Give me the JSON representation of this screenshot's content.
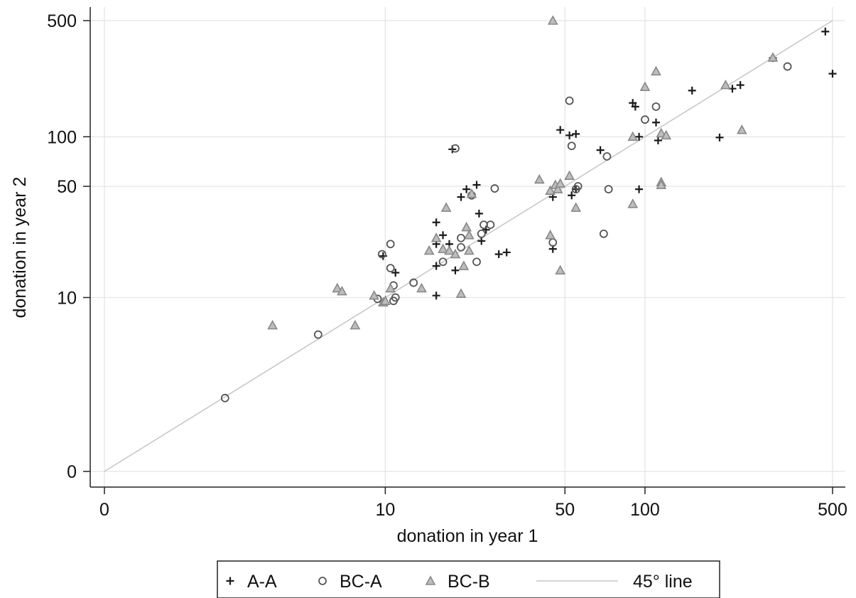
{
  "chart_data": {
    "type": "scatter",
    "title": "",
    "xlabel": "donation in year 1",
    "ylabel": "donation in year 2",
    "scale": "log(1+x)",
    "xlim": [
      0,
      500
    ],
    "ylim": [
      0,
      500
    ],
    "x_ticks": [
      0,
      10,
      50,
      100,
      500
    ],
    "y_ticks": [
      0,
      10,
      50,
      100,
      500
    ],
    "x_tick_labels": [
      "0",
      "10",
      "50",
      "100",
      "500"
    ],
    "y_tick_labels": [
      "0",
      "10",
      "50",
      "100",
      "500"
    ],
    "grid": true,
    "legend_position": "bottom",
    "reference_line": {
      "name": "45° line",
      "slope": 1,
      "color": "#c8c8c8"
    },
    "series": [
      {
        "name": "A-A",
        "marker": "plus",
        "color": "#1a1a1a",
        "points": [
          [
            9.8,
            18.5
          ],
          [
            11,
            14.5
          ],
          [
            16,
            16
          ],
          [
            16,
            10.3
          ],
          [
            16,
            30
          ],
          [
            17,
            25
          ],
          [
            16,
            22
          ],
          [
            18,
            22
          ],
          [
            19,
            15
          ],
          [
            18.5,
            84
          ],
          [
            20,
            43
          ],
          [
            21,
            48
          ],
          [
            23,
            51
          ],
          [
            23.5,
            34
          ],
          [
            24,
            23
          ],
          [
            25,
            27
          ],
          [
            28,
            19
          ],
          [
            30,
            19.5
          ],
          [
            45,
            20.5
          ],
          [
            45,
            43
          ],
          [
            48,
            110
          ],
          [
            52,
            102
          ],
          [
            55,
            104
          ],
          [
            55,
            48
          ],
          [
            53,
            44
          ],
          [
            68,
            83
          ],
          [
            90,
            160
          ],
          [
            92,
            152
          ],
          [
            95,
            100
          ],
          [
            95,
            48
          ],
          [
            110,
            122
          ],
          [
            112,
            95
          ],
          [
            150,
            190
          ],
          [
            190,
            99
          ],
          [
            212,
            195
          ],
          [
            227,
            205
          ],
          [
            300,
            298
          ],
          [
            470,
            430
          ],
          [
            500,
            240
          ]
        ]
      },
      {
        "name": "BC-A",
        "marker": "circle",
        "color": "#555555",
        "points": [
          [
            1.8,
            1.75
          ],
          [
            5.2,
            5.6
          ],
          [
            9.3,
            9.8
          ],
          [
            9.7,
            19
          ],
          [
            10.5,
            22
          ],
          [
            10.5,
            15.5
          ],
          [
            10.8,
            9.5
          ],
          [
            11,
            10
          ],
          [
            10.8,
            12
          ],
          [
            13,
            12.5
          ],
          [
            17,
            17
          ],
          [
            19,
            85
          ],
          [
            20,
            24
          ],
          [
            20,
            21
          ],
          [
            22,
            44
          ],
          [
            24.5,
            29
          ],
          [
            24,
            25.5
          ],
          [
            23,
            17
          ],
          [
            27,
            48.5
          ],
          [
            26,
            29
          ],
          [
            45,
            22.5
          ],
          [
            52,
            165
          ],
          [
            53,
            88
          ],
          [
            55,
            48
          ],
          [
            56,
            50
          ],
          [
            70,
            25.5
          ],
          [
            72,
            76
          ],
          [
            73,
            48
          ],
          [
            100,
            127
          ],
          [
            110,
            152
          ],
          [
            340,
            265
          ]
        ]
      },
      {
        "name": "BC-B",
        "marker": "triangle",
        "color": "#888888",
        "points": [
          [
            3.2,
            6.5
          ],
          [
            6.3,
            11.5
          ],
          [
            6.6,
            11
          ],
          [
            7.5,
            6.5
          ],
          [
            9,
            10.3
          ],
          [
            9.8,
            9.3
          ],
          [
            10,
            9.5
          ],
          [
            10.5,
            11.5
          ],
          [
            14,
            11.5
          ],
          [
            15,
            20
          ],
          [
            16,
            24
          ],
          [
            17,
            20.5
          ],
          [
            17.5,
            37
          ],
          [
            18,
            20
          ],
          [
            19,
            19
          ],
          [
            20,
            10.6
          ],
          [
            20.5,
            16
          ],
          [
            21,
            28
          ],
          [
            21.5,
            25
          ],
          [
            21.5,
            20
          ],
          [
            22,
            45
          ],
          [
            40,
            55
          ],
          [
            45,
            500
          ],
          [
            44,
            47
          ],
          [
            44,
            25
          ],
          [
            46,
            51
          ],
          [
            47,
            48
          ],
          [
            48,
            52
          ],
          [
            48,
            15
          ],
          [
            52,
            58
          ],
          [
            55,
            37
          ],
          [
            90,
            100
          ],
          [
            90,
            39
          ],
          [
            100,
            200
          ],
          [
            110,
            248
          ],
          [
            115,
            53
          ],
          [
            115,
            51
          ],
          [
            115,
            105
          ],
          [
            120,
            102
          ],
          [
            200,
            205
          ],
          [
            230,
            110
          ],
          [
            300,
            300
          ]
        ]
      }
    ]
  },
  "legend": {
    "items": [
      {
        "symbol": "+",
        "label": "A-A"
      },
      {
        "symbol": "○",
        "label": "BC-A"
      },
      {
        "symbol": "△",
        "label": "BC-B"
      },
      {
        "symbol": "line",
        "label": "45° line"
      }
    ]
  }
}
